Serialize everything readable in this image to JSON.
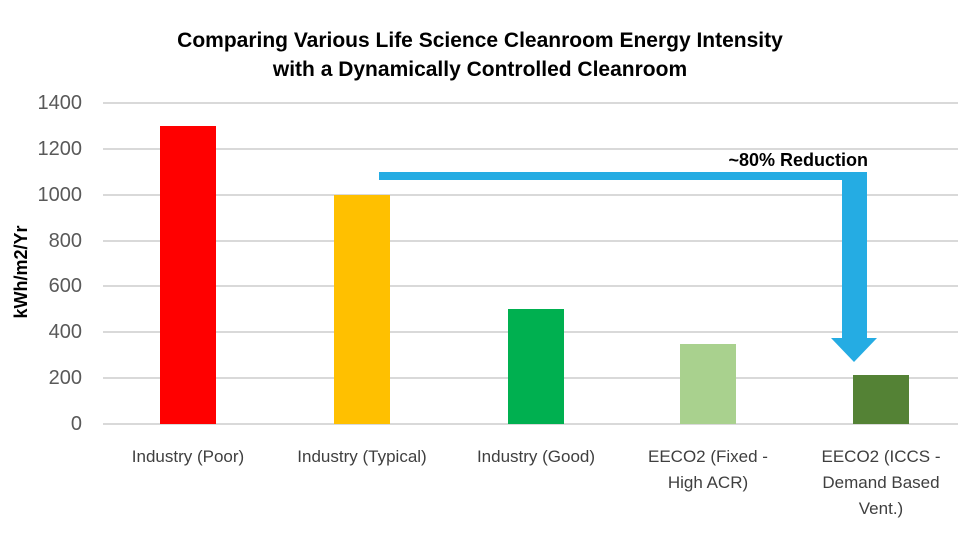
{
  "chart_data": {
    "type": "bar",
    "title": "Comparing Various Life Science Cleanroom Energy Intensity with a Dynamically Controlled Cleanroom",
    "title_lines": [
      "Comparing Various Life Science Cleanroom Energy Intensity",
      "with a Dynamically Controlled Cleanroom"
    ],
    "ylabel": "kWh/m2/Yr",
    "xlabel": "",
    "ylim": [
      0,
      1400
    ],
    "ytick_interval": 200,
    "yticks": [
      1400,
      1200,
      1000,
      800,
      600,
      400,
      200,
      0
    ],
    "categories": [
      "Industry (Poor)",
      "Industry (Typical)",
      "Industry (Good)",
      "EECO2 (Fixed - High ACR)",
      "EECO2 (ICCS - Demand Based Vent.)"
    ],
    "values": [
      1300,
      1000,
      500,
      350,
      215
    ],
    "bar_colors": [
      "#FF0000",
      "#FFC000",
      "#00B050",
      "#A9D18E",
      "#548235"
    ],
    "grid": true,
    "gridline_color": "#D9D9D9",
    "legend": false,
    "annotation": {
      "label": "~80% Reduction",
      "color": "#25ACE3"
    },
    "colors": {
      "background": "#FFFFFF",
      "title_text": "#000000",
      "y_tick_text": "#595959",
      "x_label_text": "#3F3F3F"
    }
  }
}
